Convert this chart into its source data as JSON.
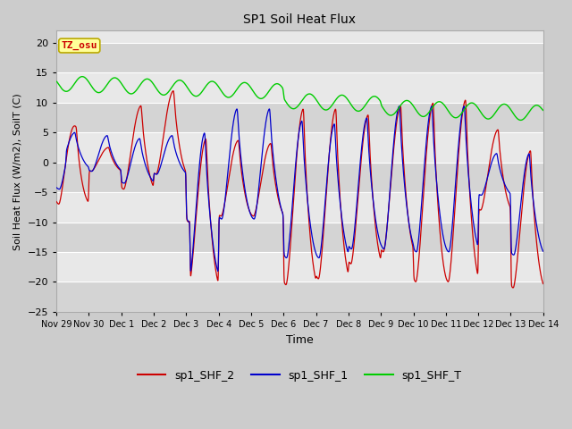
{
  "title": "SP1 Soil Heat Flux",
  "xlabel": "Time",
  "ylabel": "Soil Heat Flux (W/m2), SoilT (C)",
  "ylim": [
    -25,
    22
  ],
  "yticks": [
    -25,
    -20,
    -15,
    -10,
    -5,
    0,
    5,
    10,
    15,
    20
  ],
  "line_colors": {
    "sp1_SHF_2": "#cc0000",
    "sp1_SHF_1": "#0000cc",
    "sp1_SHF_T": "#00cc00"
  },
  "tz_label": "TZ_osu",
  "tz_bg": "#ffff99",
  "tz_border": "#bbaa00",
  "tz_text_color": "#cc0000",
  "x_tick_labels": [
    "Nov 29",
    "Nov 30",
    "Dec 1",
    "Dec 2",
    "Dec 3",
    "Dec 4",
    "Dec 5",
    "Dec 6",
    "Dec 7",
    "Dec 8",
    "Dec 9",
    "Dec 10",
    "Dec 11",
    "Dec 12",
    "Dec 13",
    "Dec 14"
  ],
  "fig_bg": "#cccccc",
  "plot_bg": "#e8e8e8",
  "band_color": "#d4d4d4"
}
